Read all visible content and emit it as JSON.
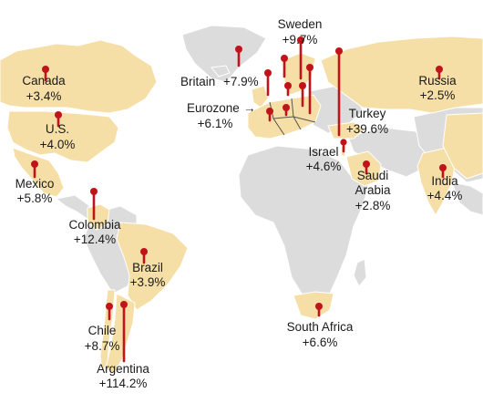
{
  "colors": {
    "land_default": "#dcdcdc",
    "land_highlight": "#f6dfa6",
    "marker": "#c0141a",
    "background": "#ffffff"
  },
  "countries": [
    {
      "id": "canada",
      "name": "Canada",
      "value": "+3.4%"
    },
    {
      "id": "us",
      "name": "U.S.",
      "value": "+4.0%"
    },
    {
      "id": "mexico",
      "name": "Mexico",
      "value": "+5.8%"
    },
    {
      "id": "colombia",
      "name": "Colombia",
      "value": "+12.4%"
    },
    {
      "id": "brazil",
      "name": "Brazil",
      "value": "+3.9%"
    },
    {
      "id": "chile",
      "name": "Chile",
      "value": "+8.7%"
    },
    {
      "id": "argentina",
      "name": "Argentina",
      "value": "+114.2%"
    },
    {
      "id": "britain",
      "name": "Britain",
      "value": "+7.9%"
    },
    {
      "id": "sweden",
      "name": "Sweden",
      "value": "+9.7%"
    },
    {
      "id": "eurozone",
      "name": "Eurozone",
      "value": "+6.1%"
    },
    {
      "id": "turkey",
      "name": "Turkey",
      "value": "+39.6%"
    },
    {
      "id": "israel",
      "name": "Israel",
      "value": "+4.6%"
    },
    {
      "id": "saudi",
      "name_line1": "Saudi",
      "name_line2": "Arabia",
      "value": "+2.8%"
    },
    {
      "id": "russia",
      "name": "Russia",
      "value": "+2.5%"
    },
    {
      "id": "india",
      "name": "India",
      "value": "+4.4%"
    },
    {
      "id": "south_africa",
      "name": "South Africa",
      "value": "+6.6%"
    }
  ],
  "eurozone_arrow": "→"
}
